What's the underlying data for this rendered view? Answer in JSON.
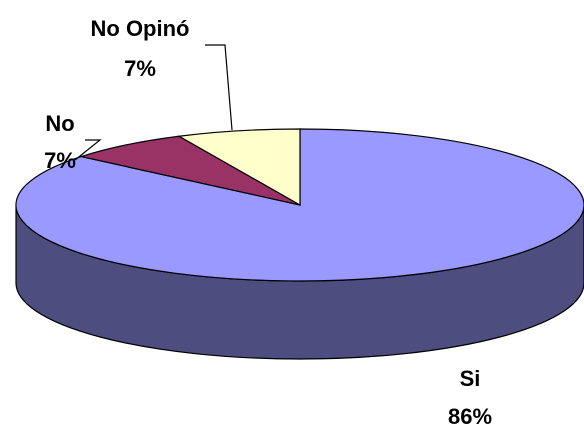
{
  "chart_data": {
    "type": "pie",
    "categories": [
      "Si",
      "No",
      "No Opinó"
    ],
    "values": [
      86,
      7,
      7
    ],
    "value_labels": [
      "86%",
      "7%",
      "7%"
    ],
    "colors": [
      "#9999ff",
      "#993366",
      "#ffffcc"
    ]
  }
}
